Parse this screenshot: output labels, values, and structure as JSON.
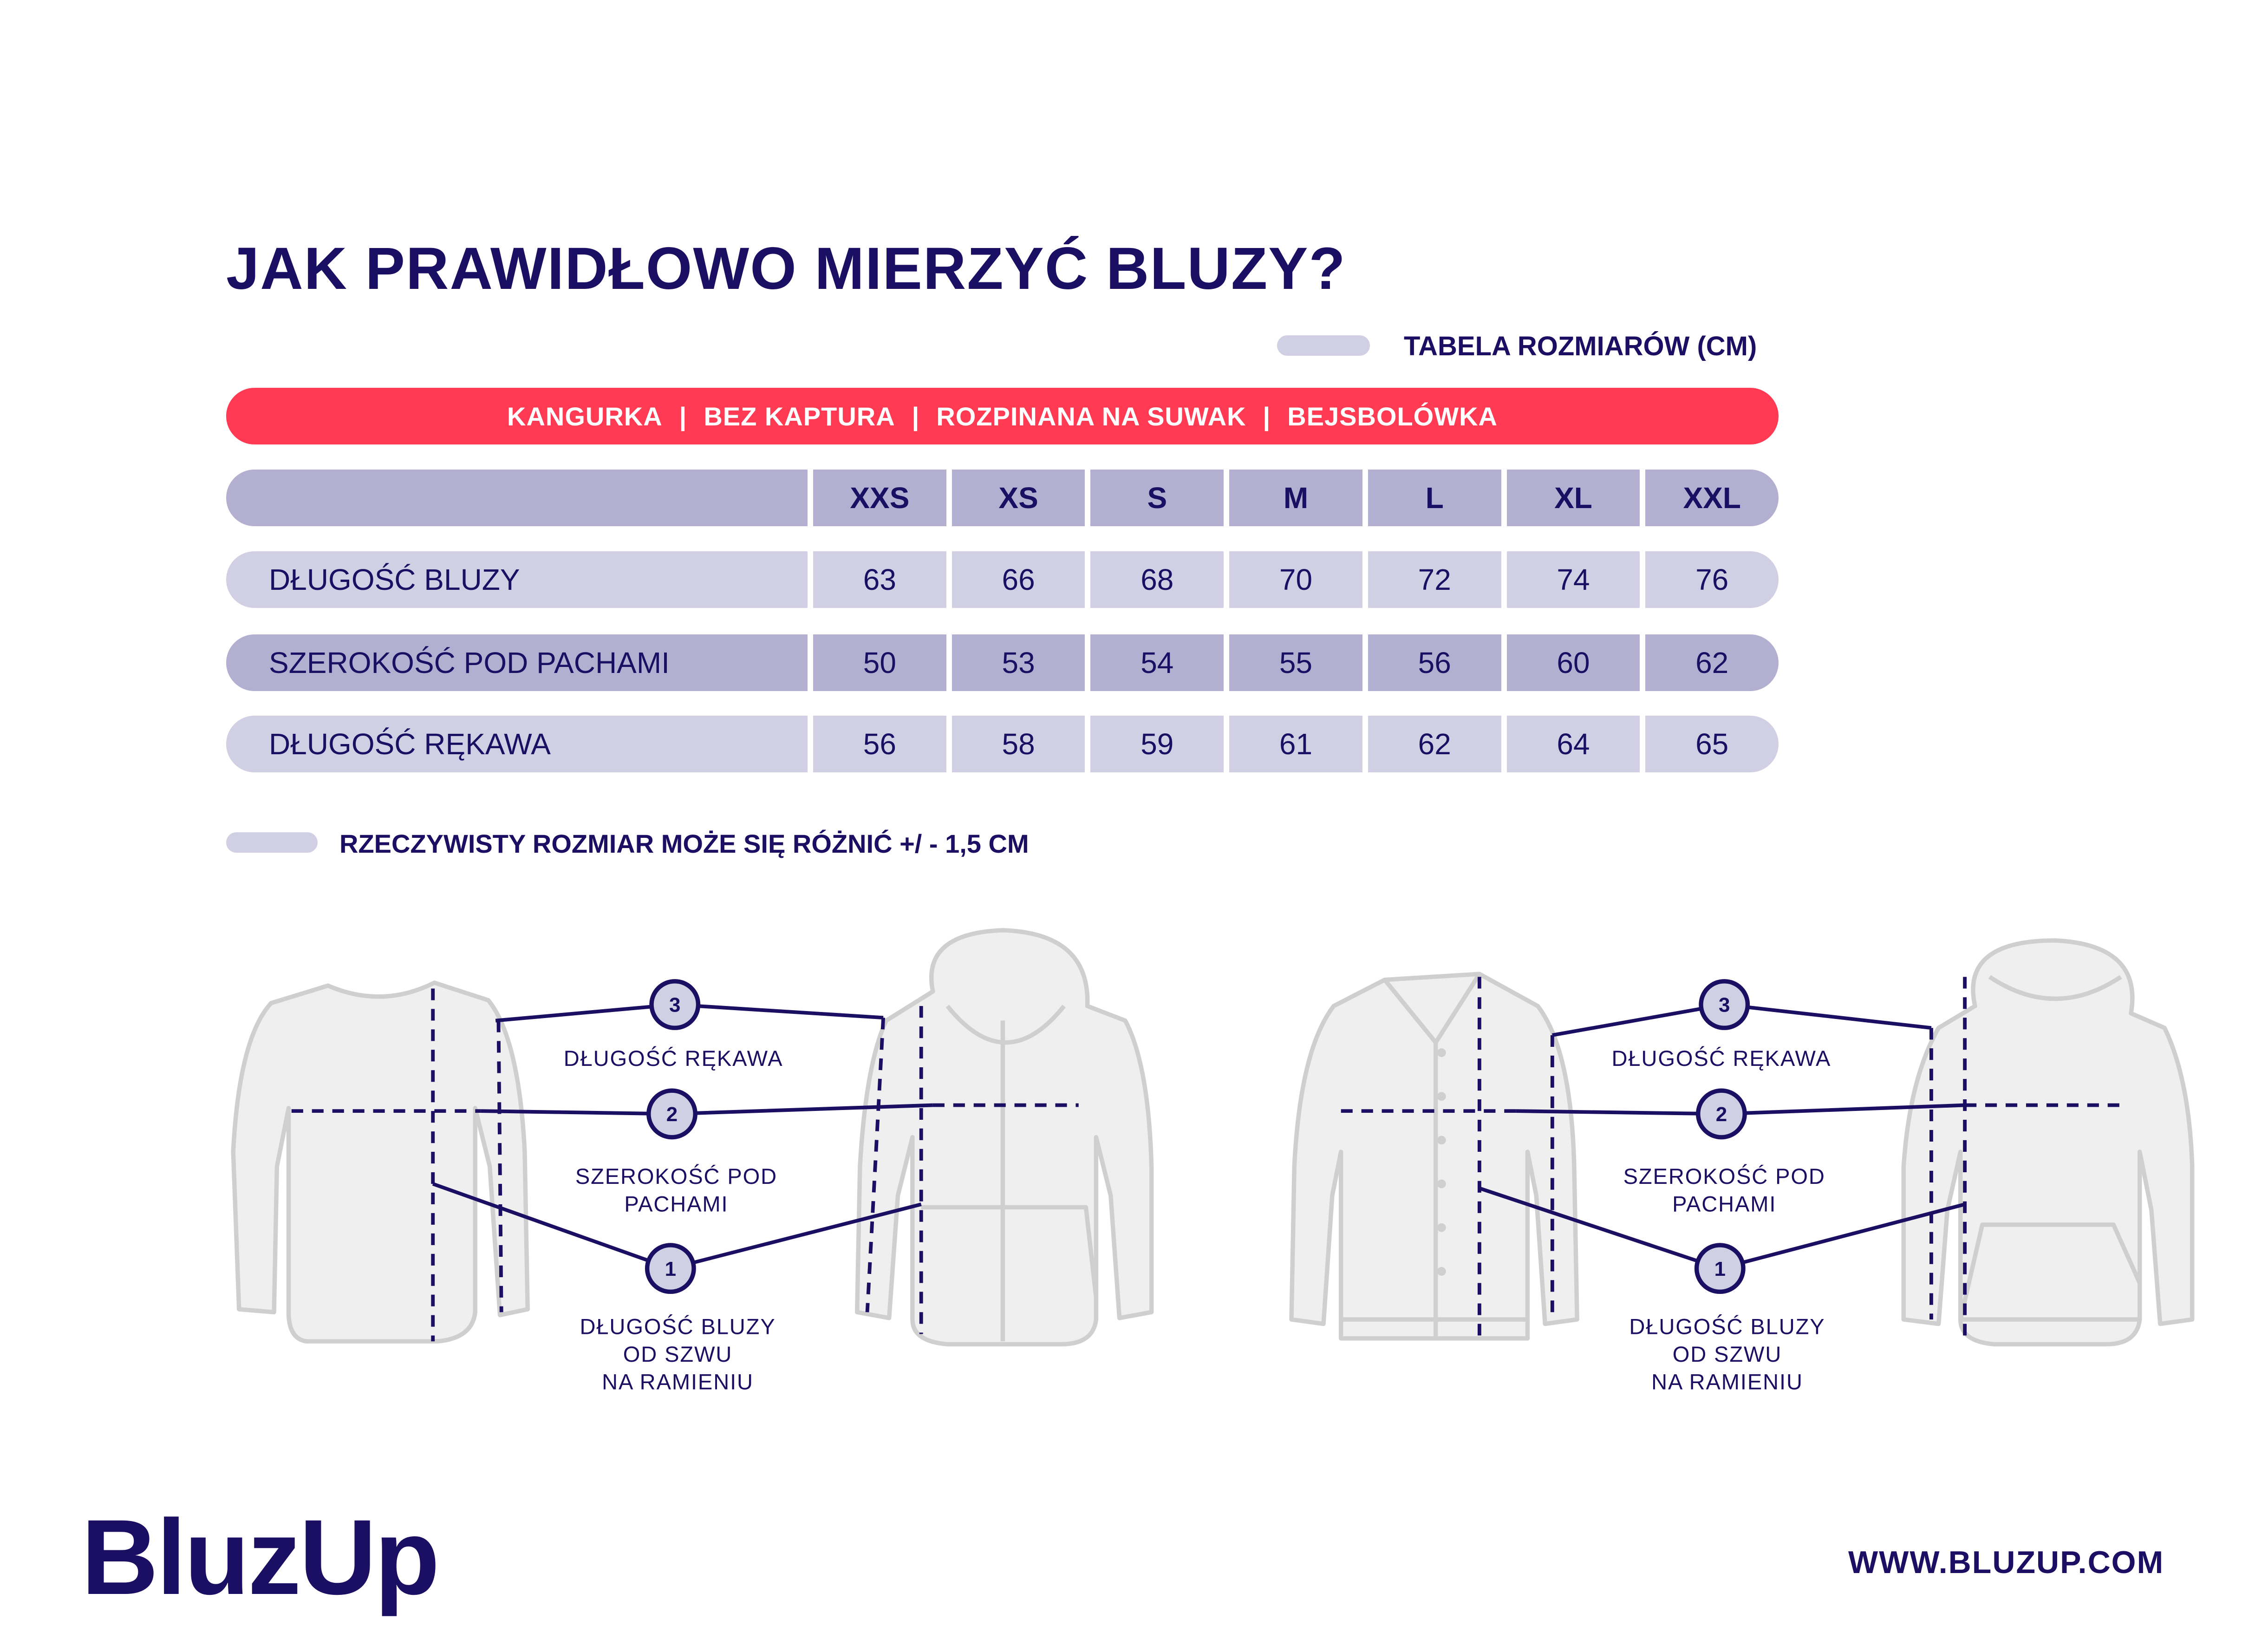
{
  "title": "JAK PRAWIDŁOWO MIERZYĆ BLUZY?",
  "legend": "TABELA ROZMIARÓW (CM)",
  "types": [
    "KANGURKA",
    "BEZ KAPTURA",
    "ROZPINANA NA SUWAK",
    "BEJSBOLÓWKA"
  ],
  "types_separator": "|",
  "table": {
    "sizes": [
      "XXS",
      "XS",
      "S",
      "M",
      "L",
      "XL",
      "XXL"
    ],
    "rows": [
      {
        "label": "DŁUGOŚĆ BLUZY",
        "values": [
          "63",
          "66",
          "68",
          "70",
          "72",
          "74",
          "76"
        ]
      },
      {
        "label": "SZEROKOŚĆ POD PACHAMI",
        "values": [
          "50",
          "53",
          "54",
          "55",
          "56",
          "60",
          "62"
        ]
      },
      {
        "label": "DŁUGOŚĆ RĘKAWA",
        "values": [
          "56",
          "58",
          "59",
          "61",
          "62",
          "64",
          "65"
        ]
      }
    ]
  },
  "note": "RZECZYWISTY ROZMIAR MOŻE SIĘ RÓŻNIĆ +/ - 1,5 CM",
  "diagram": {
    "markers": [
      "1",
      "2",
      "3"
    ],
    "sleeve_label": "DŁUGOŚĆ RĘKAWA",
    "width_label": [
      "SZEROKOŚĆ POD",
      "PACHAMI"
    ],
    "length_label": [
      "DŁUGOŚĆ BLUZY",
      "OD SZWU",
      "NA RAMIENIU"
    ]
  },
  "logo": "BluzUp",
  "website": "WWW.BLUZUP.COM",
  "colors": {
    "navy": "#1b0f63",
    "red": "#ff3a52",
    "purple": "#b2afd0",
    "lavender": "#d0cfe3",
    "garment": "#efefef"
  }
}
